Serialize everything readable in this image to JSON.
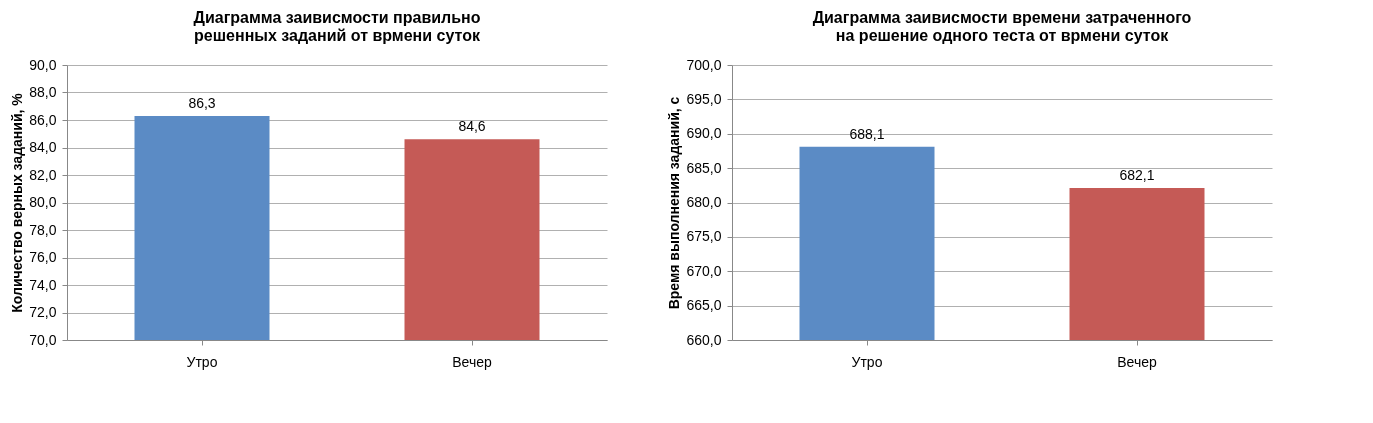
{
  "chart_data": [
    {
      "type": "bar",
      "title": "Диаграмма заивисмости правильно решенных заданий от врмени суток",
      "ylabel": "Количество верных заданий, %",
      "categories": [
        "Утро",
        "Вечер"
      ],
      "values": [
        86.3,
        84.6
      ],
      "colors": [
        "#5b8bc5",
        "#c55a56"
      ],
      "value_labels": [
        "86,3",
        "84,6"
      ],
      "ylim": [
        70,
        90
      ],
      "yticks": [
        {
          "value": 70,
          "label": "70,0"
        },
        {
          "value": 72,
          "label": "72,0"
        },
        {
          "value": 74,
          "label": "74,0"
        },
        {
          "value": 76,
          "label": "76,0"
        },
        {
          "value": 78,
          "label": "78,0"
        },
        {
          "value": 80,
          "label": "80,0"
        },
        {
          "value": 82,
          "label": "82,0"
        },
        {
          "value": 84,
          "label": "84,0"
        },
        {
          "value": 86,
          "label": "86,0"
        },
        {
          "value": 88,
          "label": "88,0"
        },
        {
          "value": 90,
          "label": "90,0"
        }
      ],
      "grid": "y",
      "legend": false
    },
    {
      "type": "bar",
      "title": "Диаграмма заивисмости времени затраченного на решение одного теста от врмени суток",
      "ylabel": "Время выполнения заданий, с",
      "categories": [
        "Утро",
        "Вечер"
      ],
      "values": [
        688.1,
        682.1
      ],
      "colors": [
        "#5b8bc5",
        "#c55a56"
      ],
      "value_labels": [
        "688,1",
        "682,1"
      ],
      "ylim": [
        660,
        700
      ],
      "yticks": [
        {
          "value": 660,
          "label": "660,0"
        },
        {
          "value": 665,
          "label": "665,0"
        },
        {
          "value": 670,
          "label": "670,0"
        },
        {
          "value": 675,
          "label": "675,0"
        },
        {
          "value": 680,
          "label": "680,0"
        },
        {
          "value": 685,
          "label": "685,0"
        },
        {
          "value": 690,
          "label": "690,0"
        },
        {
          "value": 695,
          "label": "695,0"
        },
        {
          "value": 700,
          "label": "700,0"
        }
      ],
      "grid": "y",
      "legend": false
    }
  ]
}
